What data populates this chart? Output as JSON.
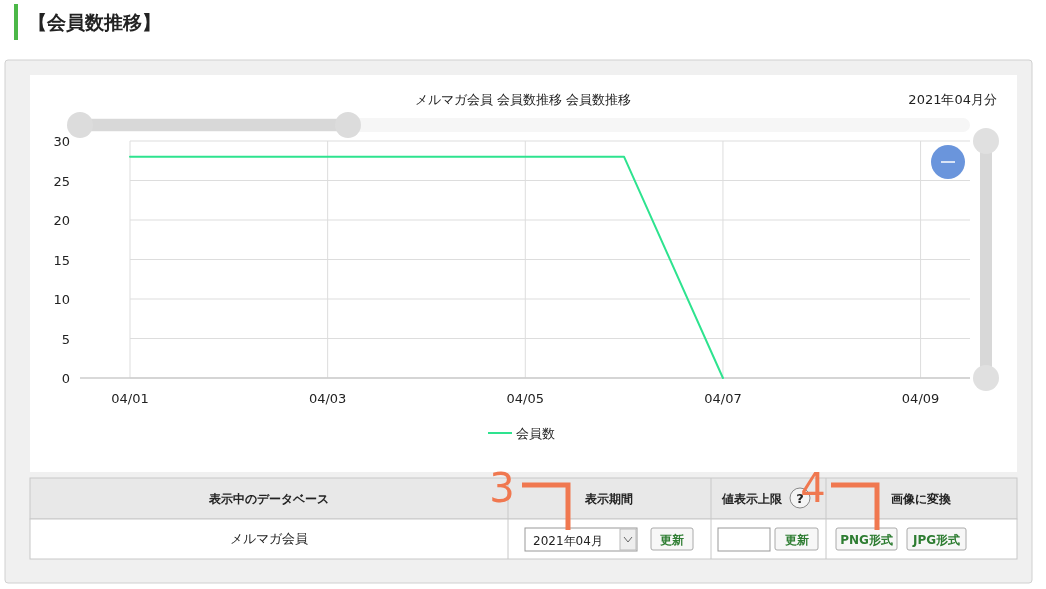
{
  "chart_data": {
    "type": "line",
    "title": "メルマガ会員 会員数推移 会員数推移",
    "x": [
      "2021-04-01",
      "2021-04-02",
      "2021-04-03",
      "2021-04-04",
      "2021-04-05",
      "2021-04-06",
      "2021-04-07"
    ],
    "series": [
      {
        "name": "会員数",
        "color": "#2ee38f",
        "values": [
          28,
          28,
          28,
          28,
          28,
          28,
          0
        ]
      }
    ],
    "xlim": [
      "2021-04-01",
      "2021-04-09T12:00"
    ],
    "xticks": [
      {
        "value": "2021-04-01",
        "label": "04/01"
      },
      {
        "value": "2021-04-03",
        "label": "04/03"
      },
      {
        "value": "2021-04-05",
        "label": "04/05"
      },
      {
        "value": "2021-04-07",
        "label": "04/07"
      },
      {
        "value": "2021-04-09",
        "label": "04/09"
      }
    ],
    "ylim": [
      0,
      30
    ],
    "yticks": [
      0,
      5,
      10,
      15,
      20,
      25,
      30
    ],
    "grid": true,
    "legend": "bottom",
    "marker": "none",
    "line_style": "solid",
    "annotations": [
      "【会員数推移】",
      "2021年04月分",
      "表示中のデータベース",
      "表示期間",
      "値表示上限",
      "?",
      "画像に変換",
      "メルマガ会員",
      "2021年04月",
      "更新",
      "更新",
      "PNG形式",
      "JPG形式",
      "3",
      "4"
    ]
  }
}
